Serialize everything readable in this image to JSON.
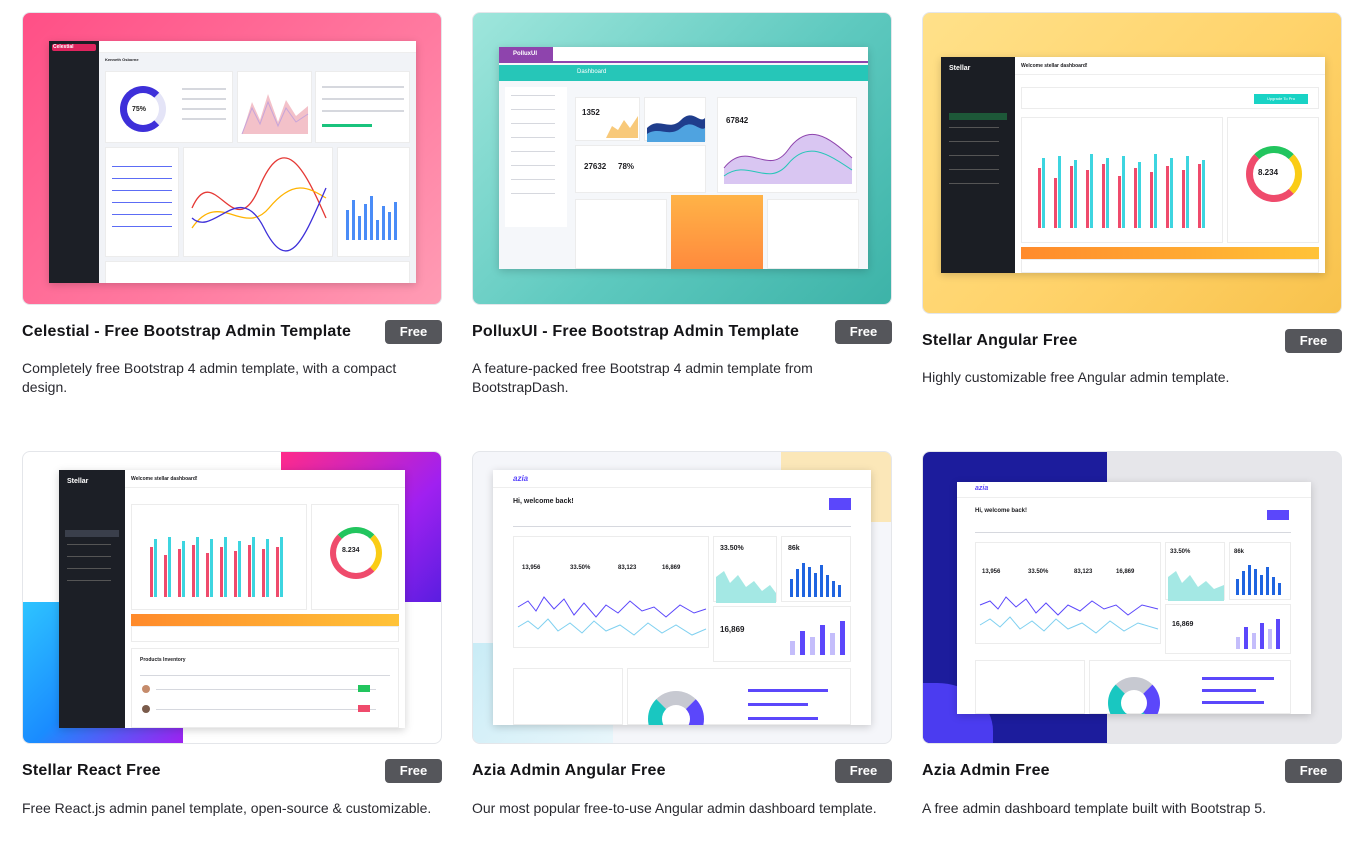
{
  "cards": [
    {
      "title": "Celestial - Free Bootstrap Admin Template",
      "badge": "Free",
      "description": "Completely free Bootstrap 4 admin template, with a compact design.",
      "preview": {
        "brand": "Celestial",
        "kpi": "75%",
        "heading": "Kenneth Osborne"
      }
    },
    {
      "title": "PolluxUI - Free Bootstrap Admin Template",
      "badge": "Free",
      "description": "A feature-packed free Bootstrap 4 admin template from BootstrapDash.",
      "preview": {
        "brand": "PolluxUI",
        "section": "Dashboard",
        "stat_a": "1352",
        "stat_b": "27632",
        "stat_c": "78%",
        "stat_d": "67842"
      }
    },
    {
      "title": "Stellar Angular Free",
      "badge": "Free",
      "description": "Highly customizable free Angular admin template.",
      "preview": {
        "brand": "Stellar",
        "welcome": "Welcome stellar dashboard!",
        "kpi": "8.234",
        "upgrade": "Upgrade To Pro"
      }
    },
    {
      "title": "Stellar React Free",
      "badge": "Free",
      "description": "Free React.js admin panel template, open-source & customizable.",
      "preview": {
        "brand": "Stellar",
        "welcome": "Welcome stellar dashboard!",
        "kpi": "8.234",
        "section": "Products Inventory"
      }
    },
    {
      "title": "Azia Admin Angular Free",
      "badge": "Free",
      "description": "Our most popular free-to-use Angular admin dashboard template.",
      "preview": {
        "brand": "azia",
        "welcome": "Hi, welcome back!",
        "stat_a": "13,956",
        "stat_b": "33.50%",
        "stat_c": "83,123",
        "stat_d": "16,869",
        "stat_e": "86k"
      }
    },
    {
      "title": "Azia Admin Free",
      "badge": "Free",
      "description": "A free admin dashboard template built with Bootstrap 5.",
      "preview": {
        "brand": "azia",
        "welcome": "Hi, welcome back!",
        "stat_a": "13,956",
        "stat_b": "33.50%",
        "stat_c": "83,123",
        "stat_d": "16,869",
        "stat_e": "86k"
      }
    }
  ],
  "colors": {
    "badge_bg": "#55565b",
    "celestial_bg": "#ff5c8d",
    "pollux_bg": "#7fdad0",
    "stellar_bg": "#ffd56b",
    "azia_blue": "#1c1c9c",
    "azia_purple": "#5b47fb"
  }
}
